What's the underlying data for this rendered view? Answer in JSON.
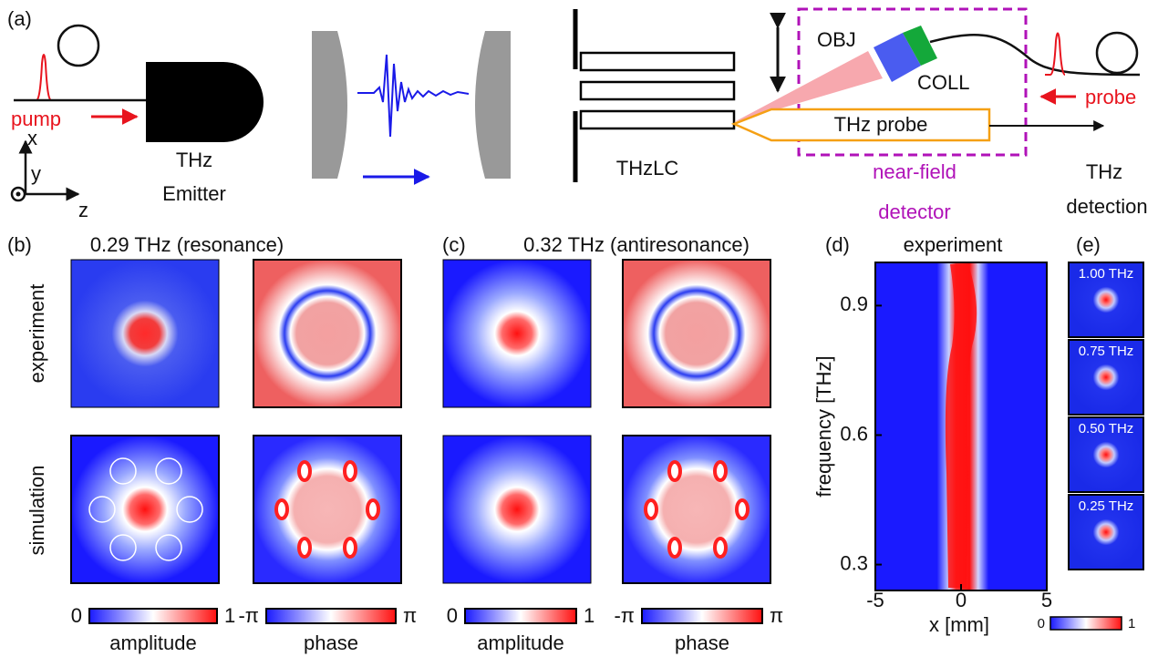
{
  "panel_labels": [
    "(a)",
    "(b)",
    "(c)",
    "(d)",
    "(e)"
  ],
  "schematic": {
    "pump": "pump",
    "axis_x": "x",
    "axis_y": "y",
    "axis_z": "z",
    "emitter": [
      "THz",
      "Emitter"
    ],
    "thzlc": "THzLC",
    "obj": "OBJ",
    "coll": "COLL",
    "thz_probe": "THz probe",
    "probe": "probe",
    "near_field": [
      "near-field",
      "detector"
    ],
    "detection": [
      "THz",
      "detection"
    ]
  },
  "panel_b": {
    "title": "0.29 THz (resonance)"
  },
  "panel_c": {
    "title": "0.32 THz (antiresonance)"
  },
  "row_labels": [
    "experiment",
    "simulation"
  ],
  "colorbars": [
    {
      "min": 0,
      "max": 1,
      "label": "amplitude"
    },
    {
      "min": "-π",
      "max": "π",
      "label": "phase"
    },
    {
      "min": 0,
      "max": 1,
      "label": "amplitude"
    },
    {
      "min": "-π",
      "max": "π",
      "label": "phase"
    }
  ],
  "panel_d": {
    "title": "experiment",
    "xlabel": "x [mm]",
    "ylabel": "frequency [THz]",
    "xlim": [
      -5,
      5
    ],
    "xticks": [
      -5,
      0,
      5
    ],
    "ylim": [
      0.24,
      1.0
    ],
    "yticks": [
      0.3,
      0.6,
      0.9
    ]
  },
  "panel_e": {
    "labels": [
      "1.00 THz",
      "0.75 THz",
      "0.50 THz",
      "0.25 THz"
    ],
    "colorbar": {
      "min": 0,
      "max": 1
    }
  }
}
